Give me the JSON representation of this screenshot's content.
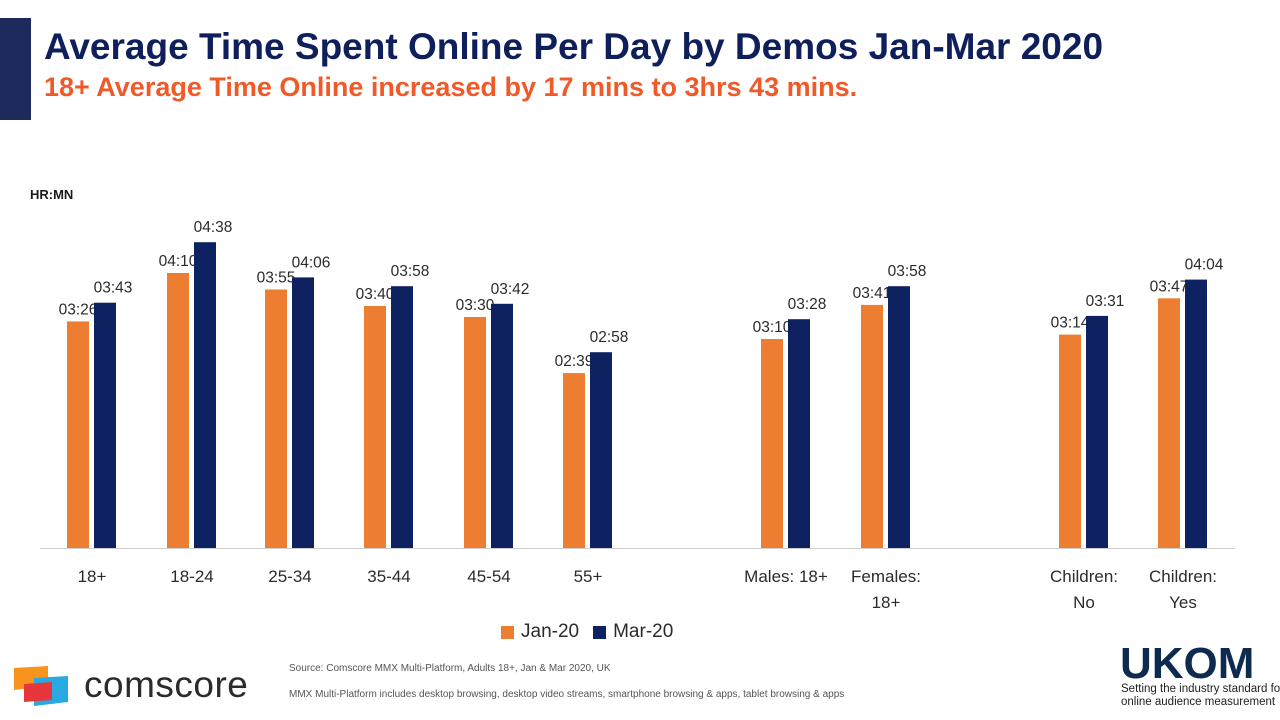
{
  "header": {
    "title": "Average Time Spent Online Per Day by Demos Jan-Mar 2020",
    "subtitle": "18+ Average Time Online increased by 17 mins to 3hrs 43 mins."
  },
  "colors": {
    "accent_bar": "#1f2a5c",
    "jan": "#ed7d31",
    "mar": "#0e2160",
    "subtitle": "#ef5a28"
  },
  "chart_data": {
    "type": "bar",
    "unit_label": "HR:MN",
    "categories": [
      [
        "18+"
      ],
      [
        "18-24"
      ],
      [
        "25-34"
      ],
      [
        "35-44"
      ],
      [
        "45-54"
      ],
      [
        "55+"
      ],
      [
        "Males: 18+"
      ],
      [
        "Females:",
        "18+"
      ],
      [
        "Children:",
        "No"
      ],
      [
        "Children:",
        "Yes"
      ]
    ],
    "series": [
      {
        "name": "Jan-20",
        "color": "#ed7d31",
        "values": [
          "03:26",
          "04:10",
          "03:55",
          "03:40",
          "03:30",
          "02:39",
          "03:10",
          "03:41",
          "03:14",
          "03:47"
        ]
      },
      {
        "name": "Mar-20",
        "color": "#0e2160",
        "values": [
          "03:43",
          "04:38",
          "04:06",
          "03:58",
          "03:42",
          "02:58",
          "03:28",
          "03:58",
          "03:31",
          "04:04"
        ]
      }
    ],
    "legend": "bottom"
  },
  "footer": {
    "source": "Source: Comscore MMX Multi-Platform, Adults 18+, Jan & Mar 2020, UK",
    "note": "MMX Multi-Platform includes desktop browsing, desktop video streams, smartphone browsing & apps, tablet browsing & apps",
    "comscore": "comscore",
    "ukom": "UKOM",
    "ukom_tagline": [
      "Setting the industry standard for",
      "online audience measurement"
    ]
  }
}
